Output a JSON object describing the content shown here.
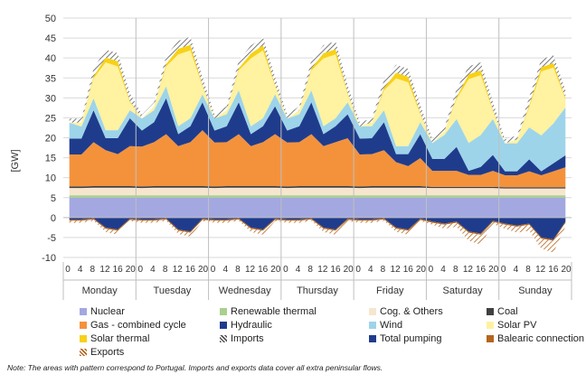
{
  "chart_data": {
    "type": "area",
    "stacked": true,
    "ylabel": "[GW]",
    "ylim": [
      -10,
      50
    ],
    "yticks": [
      -10,
      -5,
      0,
      5,
      10,
      15,
      20,
      25,
      30,
      35,
      40,
      45,
      50
    ],
    "days": [
      "Monday",
      "Tuesday",
      "Wednesday",
      "Thursday",
      "Friday",
      "Saturday",
      "Sunday"
    ],
    "hour_ticks": [
      "0",
      "4",
      "8",
      "12",
      "16",
      "20"
    ],
    "grid": "horizontal",
    "legend_position": "bottom",
    "series": [
      {
        "name": "Nuclear",
        "color": "#a3a8e0",
        "pattern": false,
        "values": [
          5,
          5,
          5,
          5,
          5,
          5,
          5,
          5,
          5,
          5,
          5,
          5,
          5,
          5,
          5,
          5,
          5,
          5,
          5,
          5,
          5,
          5,
          5,
          5,
          5,
          5,
          5,
          5,
          5,
          5,
          5,
          5,
          5,
          5,
          5,
          5,
          5,
          5,
          5,
          5,
          5,
          5
        ]
      },
      {
        "name": "Renewable thermal",
        "color": "#a9d08e",
        "pattern": false,
        "values": [
          0.6,
          0.6,
          0.6,
          0.6,
          0.6,
          0.6,
          0.6,
          0.6,
          0.6,
          0.6,
          0.6,
          0.6,
          0.6,
          0.6,
          0.6,
          0.6,
          0.6,
          0.6,
          0.6,
          0.6,
          0.6,
          0.6,
          0.6,
          0.6,
          0.6,
          0.6,
          0.6,
          0.6,
          0.6,
          0.6,
          0.6,
          0.6,
          0.6,
          0.6,
          0.6,
          0.6,
          0.6,
          0.6,
          0.6,
          0.6,
          0.6,
          0.6
        ]
      },
      {
        "name": "Cog. & Others",
        "color": "#f6e6cf",
        "pattern": false,
        "values": [
          1.8,
          1.8,
          1.9,
          1.9,
          1.9,
          1.9,
          1.8,
          1.9,
          1.9,
          1.9,
          1.9,
          1.9,
          1.8,
          1.9,
          1.9,
          1.9,
          1.9,
          1.9,
          1.8,
          1.9,
          1.9,
          1.9,
          1.9,
          1.9,
          1.8,
          1.9,
          1.9,
          1.9,
          1.9,
          1.9,
          1.8,
          1.8,
          1.8,
          1.8,
          1.8,
          1.8,
          1.7,
          1.7,
          1.7,
          1.7,
          1.7,
          1.7
        ]
      },
      {
        "name": "Coal",
        "color": "#404040",
        "pattern": false,
        "values": [
          0.4,
          0.4,
          0.4,
          0.4,
          0.4,
          0.4,
          0.4,
          0.4,
          0.4,
          0.4,
          0.4,
          0.4,
          0.4,
          0.4,
          0.4,
          0.4,
          0.4,
          0.4,
          0.4,
          0.4,
          0.4,
          0.4,
          0.4,
          0.4,
          0.4,
          0.4,
          0.4,
          0.4,
          0.4,
          0.4,
          0.3,
          0.3,
          0.3,
          0.3,
          0.3,
          0.3,
          0.3,
          0.3,
          0.3,
          0.3,
          0.3,
          0.3
        ]
      },
      {
        "name": "Gas - combined cycle",
        "color": "#f4923c",
        "pattern": false,
        "values": [
          8,
          8,
          11,
          9,
          8,
          10,
          10,
          11,
          13,
          10,
          11,
          14,
          11,
          11,
          13,
          10,
          11,
          13,
          11,
          11,
          13,
          10,
          11,
          12,
          8,
          8,
          9,
          6,
          5,
          7,
          4,
          4,
          4,
          3,
          3,
          4,
          3,
          3,
          4,
          3,
          4,
          5
        ]
      },
      {
        "name": "Hydraulic",
        "color": "#1f3c8c",
        "pattern": false,
        "values": [
          4,
          4,
          8,
          3,
          4,
          7,
          4,
          5,
          9,
          3,
          4,
          7,
          3,
          4,
          8,
          3,
          4,
          7,
          3,
          4,
          8,
          3,
          4,
          6,
          4,
          4,
          7,
          2,
          3,
          6,
          3,
          3,
          6,
          1,
          2,
          4,
          1,
          1,
          3,
          1,
          2,
          3
        ]
      },
      {
        "name": "Wind",
        "color": "#9dd4ea",
        "pattern": false,
        "values": [
          4,
          3,
          3,
          2,
          2,
          2,
          3,
          3,
          3,
          2,
          2,
          2,
          3,
          3,
          3,
          2,
          2,
          3,
          3,
          3,
          3,
          2,
          2,
          3,
          3,
          3,
          3,
          2,
          2,
          3,
          4,
          6,
          7,
          7,
          8,
          9,
          7,
          7,
          8,
          9,
          10,
          12
        ]
      },
      {
        "name": "Solar PV",
        "color": "#fff2a0",
        "pattern": false,
        "values": [
          0,
          1,
          5,
          17,
          16,
          2,
          0,
          1,
          5,
          18,
          17,
          2,
          0,
          1,
          5,
          17,
          17,
          2,
          0,
          1,
          5,
          17,
          16,
          2,
          0,
          1,
          5,
          17,
          16,
          2,
          0,
          1,
          5,
          16,
          15,
          2,
          0,
          1,
          5,
          16,
          14,
          2
        ]
      },
      {
        "name": "Solar thermal",
        "color": "#f7d117",
        "pattern": false,
        "values": [
          0,
          0,
          0.5,
          1.2,
          1.3,
          0.3,
          0,
          0,
          0.6,
          1.4,
          1.4,
          0.3,
          0,
          0,
          0.5,
          1.2,
          1.3,
          0.3,
          0,
          0,
          0.5,
          1.3,
          1.3,
          0.3,
          0,
          0,
          0.6,
          1.4,
          1.4,
          0.3,
          0,
          0,
          0.5,
          1.2,
          1.2,
          0.3,
          0,
          0,
          0.5,
          1.1,
          1.1,
          0.3
        ]
      },
      {
        "name": "Imports",
        "color": "#ffffff",
        "pattern": true,
        "values": [
          1,
          1,
          2,
          2,
          2,
          2,
          1,
          1,
          2,
          2,
          2,
          2,
          1,
          1,
          2,
          2,
          2,
          2,
          1,
          1,
          2,
          2,
          2,
          2,
          1,
          1,
          2,
          2,
          2,
          2,
          1,
          1,
          2,
          2,
          2,
          2,
          1,
          1,
          2,
          2,
          2,
          2
        ]
      },
      {
        "name": "Total pumping",
        "color": "#1f3c8c",
        "pattern": false,
        "values": [
          -0.5,
          -0.5,
          -0.2,
          -2.5,
          -3,
          -0.3,
          -0.5,
          -0.5,
          -0.2,
          -3,
          -3.5,
          -0.3,
          -0.5,
          -0.5,
          -0.2,
          -2.5,
          -3,
          -0.3,
          -0.5,
          -0.5,
          -0.2,
          -2.5,
          -3,
          -0.3,
          -0.5,
          -0.5,
          -0.2,
          -2.5,
          -3,
          -0.3,
          -1,
          -1.5,
          -1,
          -3.5,
          -4,
          -0.8,
          -1.5,
          -2,
          -1.5,
          -5,
          -5.5,
          -1
        ]
      },
      {
        "name": "Balearic connection",
        "color": "#b5651d",
        "pattern": false,
        "values": [
          -0.3,
          -0.3,
          -0.3,
          -0.3,
          -0.3,
          -0.3,
          -0.3,
          -0.3,
          -0.3,
          -0.3,
          -0.3,
          -0.3,
          -0.3,
          -0.3,
          -0.3,
          -0.3,
          -0.3,
          -0.3,
          -0.3,
          -0.3,
          -0.3,
          -0.3,
          -0.3,
          -0.3,
          -0.3,
          -0.3,
          -0.3,
          -0.3,
          -0.3,
          -0.3,
          -0.3,
          -0.3,
          -0.3,
          -0.3,
          -0.3,
          -0.3,
          -0.3,
          -0.3,
          -0.3,
          -0.3,
          -0.3,
          -0.3
        ]
      },
      {
        "name": "Exports",
        "color": "#ffffff",
        "pattern": true,
        "values": [
          -0.5,
          -0.5,
          -0.3,
          -0.8,
          -1,
          -0.3,
          -0.5,
          -0.5,
          -0.3,
          -0.8,
          -1,
          -0.3,
          -0.5,
          -0.5,
          -0.3,
          -0.8,
          -1,
          -0.3,
          -0.5,
          -0.5,
          -0.3,
          -0.8,
          -1,
          -0.3,
          -0.5,
          -0.5,
          -0.3,
          -0.8,
          -1,
          -0.3,
          -0.5,
          -1,
          -1,
          -2,
          -2.5,
          -0.5,
          -1,
          -1.5,
          -1.5,
          -2.5,
          -3,
          -1
        ]
      }
    ]
  },
  "legend": [
    {
      "label": "Nuclear",
      "color": "#a3a8e0",
      "pattern": false
    },
    {
      "label": "Renewable thermal",
      "color": "#a9d08e",
      "pattern": false
    },
    {
      "label": "Cog. & Others",
      "color": "#f6e6cf",
      "pattern": false
    },
    {
      "label": "Coal",
      "color": "#404040",
      "pattern": false
    },
    {
      "label": "Gas - combined cycle",
      "color": "#f4923c",
      "pattern": false
    },
    {
      "label": "Hydraulic",
      "color": "#1f3c8c",
      "pattern": false
    },
    {
      "label": "Wind",
      "color": "#9dd4ea",
      "pattern": false
    },
    {
      "label": "Solar PV",
      "color": "#fff2a0",
      "pattern": false
    },
    {
      "label": "Solar thermal",
      "color": "#f7d117",
      "pattern": false
    },
    {
      "label": "Imports",
      "color": "#555555",
      "pattern": true
    },
    {
      "label": "Total pumping",
      "color": "#1f3c8c",
      "pattern": false
    },
    {
      "label": "Balearic connection",
      "color": "#b5651d",
      "pattern": false
    },
    {
      "label": "Exports",
      "color": "#b5651d",
      "pattern": true
    }
  ],
  "note": "Note: The areas with pattern correspond to Portugal. Imports and exports data cover all extra peninsular flows."
}
